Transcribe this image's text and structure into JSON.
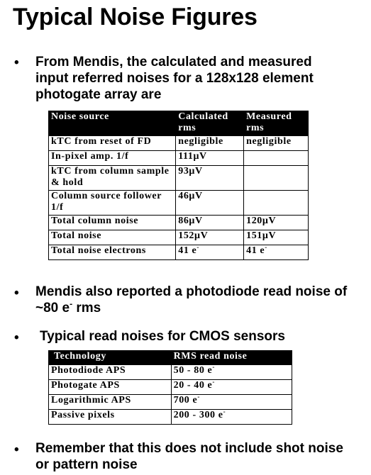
{
  "title": "Typical Noise Figures",
  "bullet_symbol": "•",
  "bullets": [
    {
      "lines": [
        "From Mendis, the calculated and measured",
        "input referred noises for a 128x128 element",
        "photogate array are"
      ]
    },
    {
      "lines": [
        "Mendis also reported a photodiode read noise of",
        "~80 e"
      ],
      "superscript": "-",
      "tail": " rms"
    },
    {
      "lines": [
        "Typical read noises for CMOS sensors"
      ]
    },
    {
      "lines": [
        "Remember that this does not include shot noise",
        "or pattern noise"
      ]
    }
  ],
  "noise_table": {
    "headers": [
      "Noise source",
      "Calculated rms",
      "Measured rms"
    ],
    "rows": [
      {
        "source": "kTC from reset of FD",
        "calculated": "negligible",
        "measured": "negligible"
      },
      {
        "source": "In-pixel amp. 1/f",
        "calculated": "111μV",
        "measured": ""
      },
      {
        "source": "kTC from column sample & hold",
        "calculated": "93μV",
        "measured": ""
      },
      {
        "source": "Column source follower 1/f",
        "calculated": "46μV",
        "measured": ""
      },
      {
        "source": "Total column noise",
        "calculated": "86μV",
        "measured": "120μV"
      },
      {
        "source": "Total noise",
        "calculated": "152μV",
        "measured": "151μV"
      },
      {
        "source": "Total noise electrons",
        "calculated": "41 e",
        "calculated_sup": "-",
        "measured": "41 e",
        "measured_sup": "-"
      }
    ]
  },
  "cmos_table": {
    "headers": [
      "Technology",
      "RMS read noise"
    ],
    "rows": [
      {
        "technology": "Photodiode APS",
        "noise": "50 - 80 e",
        "sup": "-"
      },
      {
        "technology": "Photogate APS",
        "noise": "20 - 40 e",
        "sup": "-"
      },
      {
        "technology": "Logarithmic APS",
        "noise": "700 e",
        "sup": "-"
      },
      {
        "technology": "Passive pixels",
        "noise": "200 - 300 e",
        "sup": "-"
      }
    ]
  }
}
